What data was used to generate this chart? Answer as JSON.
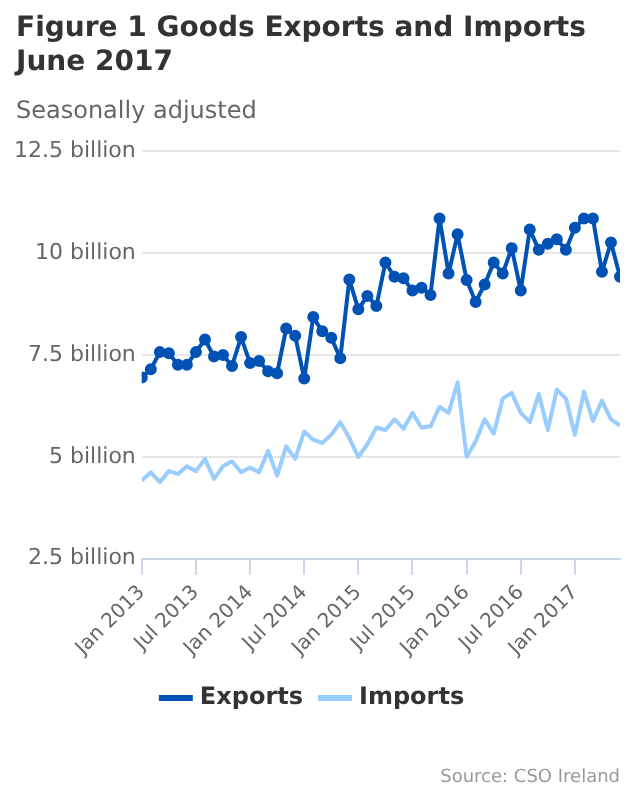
{
  "chart_data": {
    "type": "line",
    "title": "Figure 1 Goods Exports and Imports June 2017",
    "subtitle": "Seasonally adjusted",
    "x": [
      "2013-01",
      "2013-02",
      "2013-03",
      "2013-04",
      "2013-05",
      "2013-06",
      "2013-07",
      "2013-08",
      "2013-09",
      "2013-10",
      "2013-11",
      "2013-12",
      "2014-01",
      "2014-02",
      "2014-03",
      "2014-04",
      "2014-05",
      "2014-06",
      "2014-07",
      "2014-08",
      "2014-09",
      "2014-10",
      "2014-11",
      "2014-12",
      "2015-01",
      "2015-02",
      "2015-03",
      "2015-04",
      "2015-05",
      "2015-06",
      "2015-07",
      "2015-08",
      "2015-09",
      "2015-10",
      "2015-11",
      "2015-12",
      "2016-01",
      "2016-02",
      "2016-03",
      "2016-04",
      "2016-05",
      "2016-06",
      "2016-07",
      "2016-08",
      "2016-09",
      "2016-10",
      "2016-11",
      "2016-12",
      "2017-01",
      "2017-02",
      "2017-03",
      "2017-04",
      "2017-05",
      "2017-06"
    ],
    "series": [
      {
        "name": "Exports",
        "color": "#0052b4",
        "marker": "circle",
        "values": [
          6.95,
          7.15,
          7.57,
          7.54,
          7.26,
          7.26,
          7.57,
          7.88,
          7.46,
          7.5,
          7.23,
          7.94,
          7.3,
          7.35,
          7.1,
          7.05,
          8.15,
          7.97,
          6.92,
          8.43,
          8.08,
          7.92,
          7.42,
          9.35,
          8.62,
          8.95,
          8.7,
          9.77,
          9.42,
          9.38,
          9.08,
          9.15,
          8.97,
          10.85,
          9.5,
          10.46,
          9.34,
          8.8,
          9.23,
          9.77,
          9.5,
          10.12,
          9.08,
          10.58,
          10.08,
          10.23,
          10.34,
          10.08,
          10.62,
          10.85,
          10.85,
          9.54,
          10.26,
          9.42
        ]
      },
      {
        "name": "Imports",
        "color": "#99ccff",
        "marker": "none",
        "values": [
          4.42,
          4.62,
          4.38,
          4.65,
          4.58,
          4.77,
          4.65,
          4.95,
          4.46,
          4.77,
          4.89,
          4.62,
          4.74,
          4.62,
          5.15,
          4.54,
          5.26,
          4.95,
          5.62,
          5.42,
          5.34,
          5.54,
          5.85,
          5.46,
          5.0,
          5.31,
          5.72,
          5.66,
          5.92,
          5.69,
          6.08,
          5.72,
          5.75,
          6.23,
          6.08,
          6.83,
          5.0,
          5.38,
          5.92,
          5.57,
          6.43,
          6.57,
          6.08,
          5.85,
          6.54,
          5.66,
          6.65,
          6.43,
          5.54,
          6.6,
          5.88,
          6.38,
          5.92,
          5.77
        ]
      }
    ],
    "xlim": [
      "2013-01",
      "2017-06"
    ],
    "xticks": [
      {
        "value": "2013-01",
        "label": "Jan 2013"
      },
      {
        "value": "2013-07",
        "label": "Jul 2013"
      },
      {
        "value": "2014-01",
        "label": "Jan 2014"
      },
      {
        "value": "2014-07",
        "label": "Jul 2014"
      },
      {
        "value": "2015-01",
        "label": "Jan 2015"
      },
      {
        "value": "2015-07",
        "label": "Jul 2015"
      },
      {
        "value": "2016-01",
        "label": "Jan 2016"
      },
      {
        "value": "2016-07",
        "label": "Jul 2016"
      },
      {
        "value": "2017-01",
        "label": "Jan 2017"
      }
    ],
    "ylim": [
      2.5,
      12.5
    ],
    "yticks": [
      {
        "value": 2.5,
        "label": "2.5 billion"
      },
      {
        "value": 5,
        "label": "5 billion"
      },
      {
        "value": 7.5,
        "label": "7.5 billion"
      },
      {
        "value": 10,
        "label": "10 billion"
      },
      {
        "value": 12.5,
        "label": "12.5 billion"
      }
    ],
    "grid": "y",
    "legend": "bottom",
    "annotations": [
      "Source: CSO Ireland"
    ]
  }
}
